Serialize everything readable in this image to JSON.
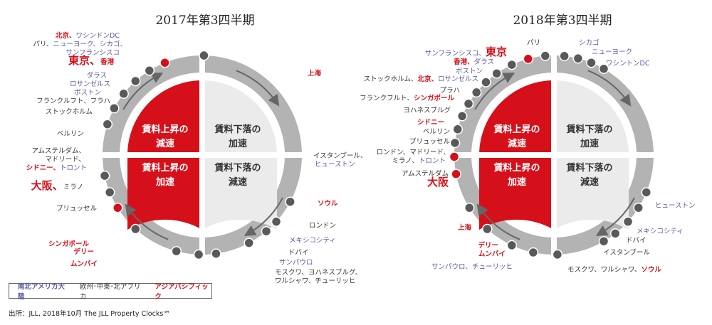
{
  "titles": {
    "left": "2017年第3四半期",
    "right": "2018年第3四半期"
  },
  "quadrants": {
    "q1": [
      "賃料上昇の",
      "減速"
    ],
    "q2": [
      "賃料下落の",
      "加速"
    ],
    "q3": [
      "賃料上昇の",
      "加速"
    ],
    "q4": [
      "賃料下落の",
      "減速"
    ]
  },
  "legend": {
    "na": "南北アメリカ大陸",
    "eu": "欧州･中東･北アフリカ",
    "ap": "アジアパシフィック"
  },
  "source": "出所：JLL, 2018年10月 The JLL Property Clocks℠",
  "colors": {
    "red": "#d6101a",
    "ring": "#b3b3b3",
    "dot": "#595959",
    "light": "#ebebeb",
    "na": "#5a5aa8"
  },
  "left_labels": {
    "l01": [
      {
        "t": "北京、",
        "c": "ap"
      },
      {
        "t": "ワシンドンDC",
        "c": "na"
      }
    ],
    "l02": [
      {
        "t": "パリ、",
        "c": "eu"
      },
      {
        "t": "ニューヨーク、シカゴ、",
        "c": "na"
      }
    ],
    "l03": [
      {
        "t": "サンフランシスコ",
        "c": "na"
      }
    ],
    "l04": [
      {
        "t": "東京、",
        "c": "big"
      },
      {
        "t": "香港",
        "c": "ap"
      }
    ],
    "l05": [
      {
        "t": "ダラス",
        "c": "na"
      }
    ],
    "l06": [
      {
        "t": "ロサンゼルス",
        "c": "na"
      }
    ],
    "l07": [
      {
        "t": "ボストン",
        "c": "na"
      }
    ],
    "l08": [
      {
        "t": "フランクルフト、フラハ",
        "c": "eu"
      }
    ],
    "l09": [
      {
        "t": "ストックホルム",
        "c": "eu"
      }
    ],
    "l10": [
      {
        "t": "ベルリン",
        "c": "eu"
      }
    ],
    "l11": [
      {
        "t": "アムステルダム、",
        "c": "eu"
      }
    ],
    "l12": [
      {
        "t": "マドリード、",
        "c": "eu"
      }
    ],
    "l13": [
      {
        "t": "シドニー、",
        "c": "ap"
      },
      {
        "t": "トロント",
        "c": "na"
      }
    ],
    "l14": [
      {
        "t": "大阪、",
        "c": "big"
      },
      {
        "t": "ミラノ",
        "c": "eu"
      }
    ],
    "l15": [
      {
        "t": "ブリュッセル",
        "c": "eu"
      }
    ],
    "l16": [
      {
        "t": "シンガポール",
        "c": "ap"
      }
    ],
    "l17": [
      {
        "t": "デリー",
        "c": "ap"
      }
    ],
    "l18": [
      {
        "t": "ムンバイ",
        "c": "ap"
      }
    ],
    "l19": [
      {
        "t": "上海",
        "c": "ap"
      }
    ],
    "l20": [
      {
        "t": "イスタンブール、",
        "c": "eu"
      }
    ],
    "l21": [
      {
        "t": "ヒューストン",
        "c": "na"
      }
    ],
    "l22": [
      {
        "t": "ソウル",
        "c": "ap"
      }
    ],
    "l23": [
      {
        "t": "ロンドン",
        "c": "eu"
      }
    ],
    "l24": [
      {
        "t": "メキシコシティ",
        "c": "na"
      }
    ],
    "l25": [
      {
        "t": "ドバイ",
        "c": "eu"
      }
    ],
    "l26": [
      {
        "t": "サンパウロ",
        "c": "na"
      }
    ],
    "l27": [
      {
        "t": "モスクワ、ヨハネスブルグ、",
        "c": "eu"
      }
    ],
    "l28": [
      {
        "t": "ワルシャワ、チューリッヒ",
        "c": "eu"
      }
    ]
  },
  "right_labels": {
    "r01": [
      {
        "t": "パリ",
        "c": "eu"
      }
    ],
    "r02": [
      {
        "t": "シカゴ",
        "c": "na"
      }
    ],
    "r03": [
      {
        "t": "ニューヨーク",
        "c": "na"
      }
    ],
    "r04": [
      {
        "t": "サンフランシスコ、",
        "c": "na"
      },
      {
        "t": "東京",
        "c": "big"
      }
    ],
    "r05": [
      {
        "t": "ワシントンDC",
        "c": "na"
      }
    ],
    "r06": [
      {
        "t": "香港、",
        "c": "ap"
      },
      {
        "t": "ダラス",
        "c": "na"
      }
    ],
    "r07": [
      {
        "t": "ボストン",
        "c": "na"
      }
    ],
    "r08": [
      {
        "t": "ストックホルム、",
        "c": "eu"
      },
      {
        "t": "北京、",
        "c": "ap"
      },
      {
        "t": "ロサンゼルス",
        "c": "na"
      }
    ],
    "r09": [
      {
        "t": "プラハ",
        "c": "eu"
      }
    ],
    "r10": [
      {
        "t": "フランクフルト、",
        "c": "eu"
      },
      {
        "t": "シンガポール",
        "c": "ap"
      }
    ],
    "r11": [
      {
        "t": "ヨハネスブルグ",
        "c": "eu"
      }
    ],
    "r12": [
      {
        "t": "シドニー",
        "c": "ap"
      }
    ],
    "r13": [
      {
        "t": "ベルリン",
        "c": "eu"
      }
    ],
    "r14": [
      {
        "t": "ブリュッセル",
        "c": "eu"
      }
    ],
    "r15": [
      {
        "t": "ロンドン、マドリード、",
        "c": "eu"
      }
    ],
    "r16": [
      {
        "t": "ミラノ、",
        "c": "eu"
      },
      {
        "t": "トロント",
        "c": "na"
      }
    ],
    "r17": [
      {
        "t": "アムステルダム",
        "c": "eu"
      }
    ],
    "r18": [
      {
        "t": "大阪",
        "c": "big"
      }
    ],
    "r19": [
      {
        "t": "ヒューストン",
        "c": "na"
      }
    ],
    "r20": [
      {
        "t": "上海",
        "c": "ap"
      }
    ],
    "r21": [
      {
        "t": "メキシコシティ",
        "c": "na"
      }
    ],
    "r22": [
      {
        "t": "ドバイ",
        "c": "eu"
      }
    ],
    "r23": [
      {
        "t": "デリー",
        "c": "ap"
      }
    ],
    "r24": [
      {
        "t": "ムンバイ",
        "c": "ap"
      }
    ],
    "r25": [
      {
        "t": "イスタンブール",
        "c": "eu"
      }
    ],
    "r26": [
      {
        "t": "サンパウロ、チューリッヒ",
        "c": "na"
      }
    ],
    "r27": [
      {
        "t": "モスクワ、ワルシャワ、",
        "c": "eu"
      },
      {
        "t": "ソウル",
        "c": "ap"
      }
    ]
  }
}
